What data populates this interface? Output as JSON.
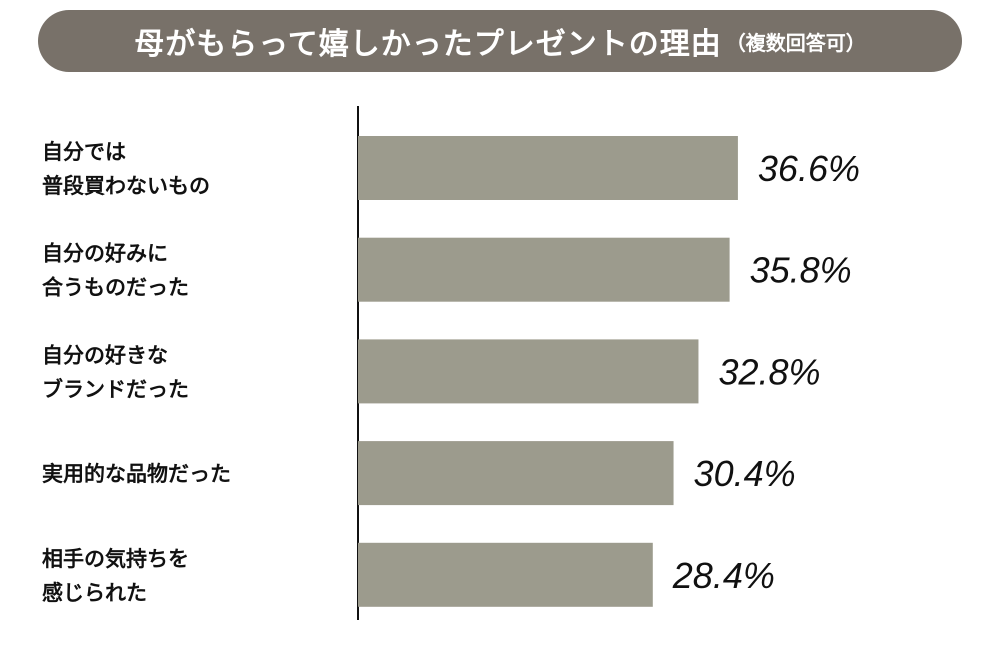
{
  "chart_data": {
    "type": "bar",
    "orientation": "horizontal",
    "title": "母がもらって嬉しかったプレゼントの理由",
    "subtitle": "（複数回答可）",
    "categories": [
      [
        "自分では",
        "普段買わないもの"
      ],
      [
        "自分の好みに",
        "合うものだった"
      ],
      [
        "自分の好きな",
        "ブランドだった"
      ],
      [
        "実用的な品物だった"
      ],
      [
        "相手の気持ちを",
        "感じられた"
      ]
    ],
    "values": [
      36.6,
      35.8,
      32.8,
      30.4,
      28.4
    ],
    "value_labels": [
      "36.6%",
      "35.8%",
      "32.8%",
      "30.4%",
      "28.4%"
    ],
    "unit": "%",
    "grid": false,
    "colors": {
      "banner": "#787169",
      "bar": "#9c9b8d",
      "axis": "#111111"
    }
  }
}
